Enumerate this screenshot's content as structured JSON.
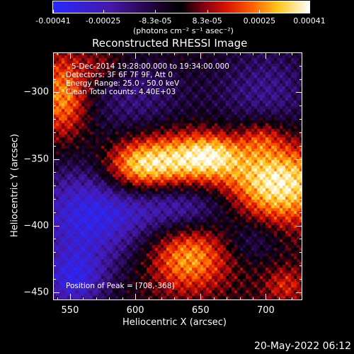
{
  "colorbar": {
    "tick_labels": [
      "-0.00041",
      "-0.00025",
      "-8.3e-05",
      "8.3e-05",
      "0.00025",
      "0.00041"
    ],
    "tick_values": [
      -0.00041,
      -0.00025,
      -8.3e-05,
      8.3e-05,
      0.00025,
      0.00041
    ],
    "range": [
      -0.00041,
      0.00041
    ],
    "units": "(photons cm⁻² s⁻¹ asec⁻²)"
  },
  "title": "Reconstructed RHESSI Image",
  "annotations": {
    "time_range": "5-Dec-2014 19:28:00.000 to 19:34:00.000",
    "detectors": "Detectors: 3F 6F 7F 9F, Att 0",
    "energy_range": "Energy Range: 25.0 - 50.0 keV",
    "method": "Clean    Total counts: 4.40E+03",
    "peak": "Position of Peak = [708,-368]"
  },
  "axes": {
    "xlabel": "Heliocentric X (arcsec)",
    "ylabel": "Heliocentric Y (arcsec)",
    "x_range": [
      537,
      728
    ],
    "y_range": [
      -456,
      -270
    ],
    "x_ticks": [
      550,
      600,
      650,
      700
    ],
    "x_tick_labels": [
      "550",
      "600",
      "650",
      "700"
    ],
    "y_ticks": [
      -300,
      -350,
      -400,
      -450
    ],
    "y_tick_labels": [
      "−300",
      "−350",
      "−400",
      "−450"
    ]
  },
  "image": {
    "colormap": "blue-black-red-yellow-white",
    "peak_position": [
      708,
      -368
    ]
  },
  "timestamp": "20-May-2022 06:12"
}
